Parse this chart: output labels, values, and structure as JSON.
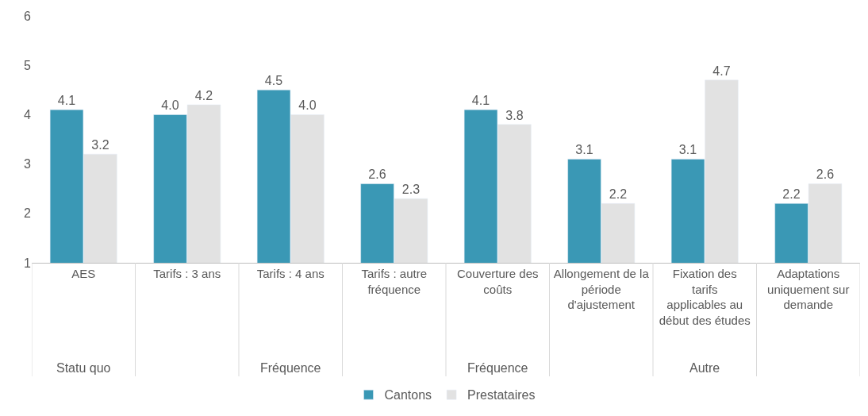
{
  "chart_data": {
    "type": "bar",
    "categories": [
      "AES",
      "Tarifs : 3 ans",
      "Tarifs : 4 ans",
      "Tarifs : autre fréquence",
      "Couverture des coûts",
      "Allongement de la période d'ajustement",
      "Fixation des tarifs applicables au début des études",
      "Adaptations uniquement sur demande"
    ],
    "series": [
      {
        "name": "Cantons",
        "color": "#3a98b5",
        "values": [
          4.1,
          4.0,
          4.5,
          2.6,
          4.1,
          3.1,
          3.1,
          2.2
        ],
        "value_labels": [
          "4.1",
          "4.0",
          "4.5",
          "2.6",
          "4.1",
          "3.1",
          "3.1",
          "2.2"
        ]
      },
      {
        "name": "Prestataires",
        "color": "#e2e2e2",
        "values": [
          3.2,
          4.2,
          4.0,
          2.3,
          3.8,
          2.2,
          4.7,
          2.6
        ],
        "value_labels": [
          "3.2",
          "4.2",
          "4.0",
          "2.3",
          "3.8",
          "2.2",
          "4.7",
          "2.6"
        ]
      }
    ],
    "ylim": [
      1,
      6
    ],
    "yticks": [
      1,
      2,
      3,
      4,
      5,
      6
    ],
    "legend": "bottom",
    "annotations": [
      "Statu quo",
      "Fréquence",
      "Fréquence",
      "Autre"
    ]
  }
}
